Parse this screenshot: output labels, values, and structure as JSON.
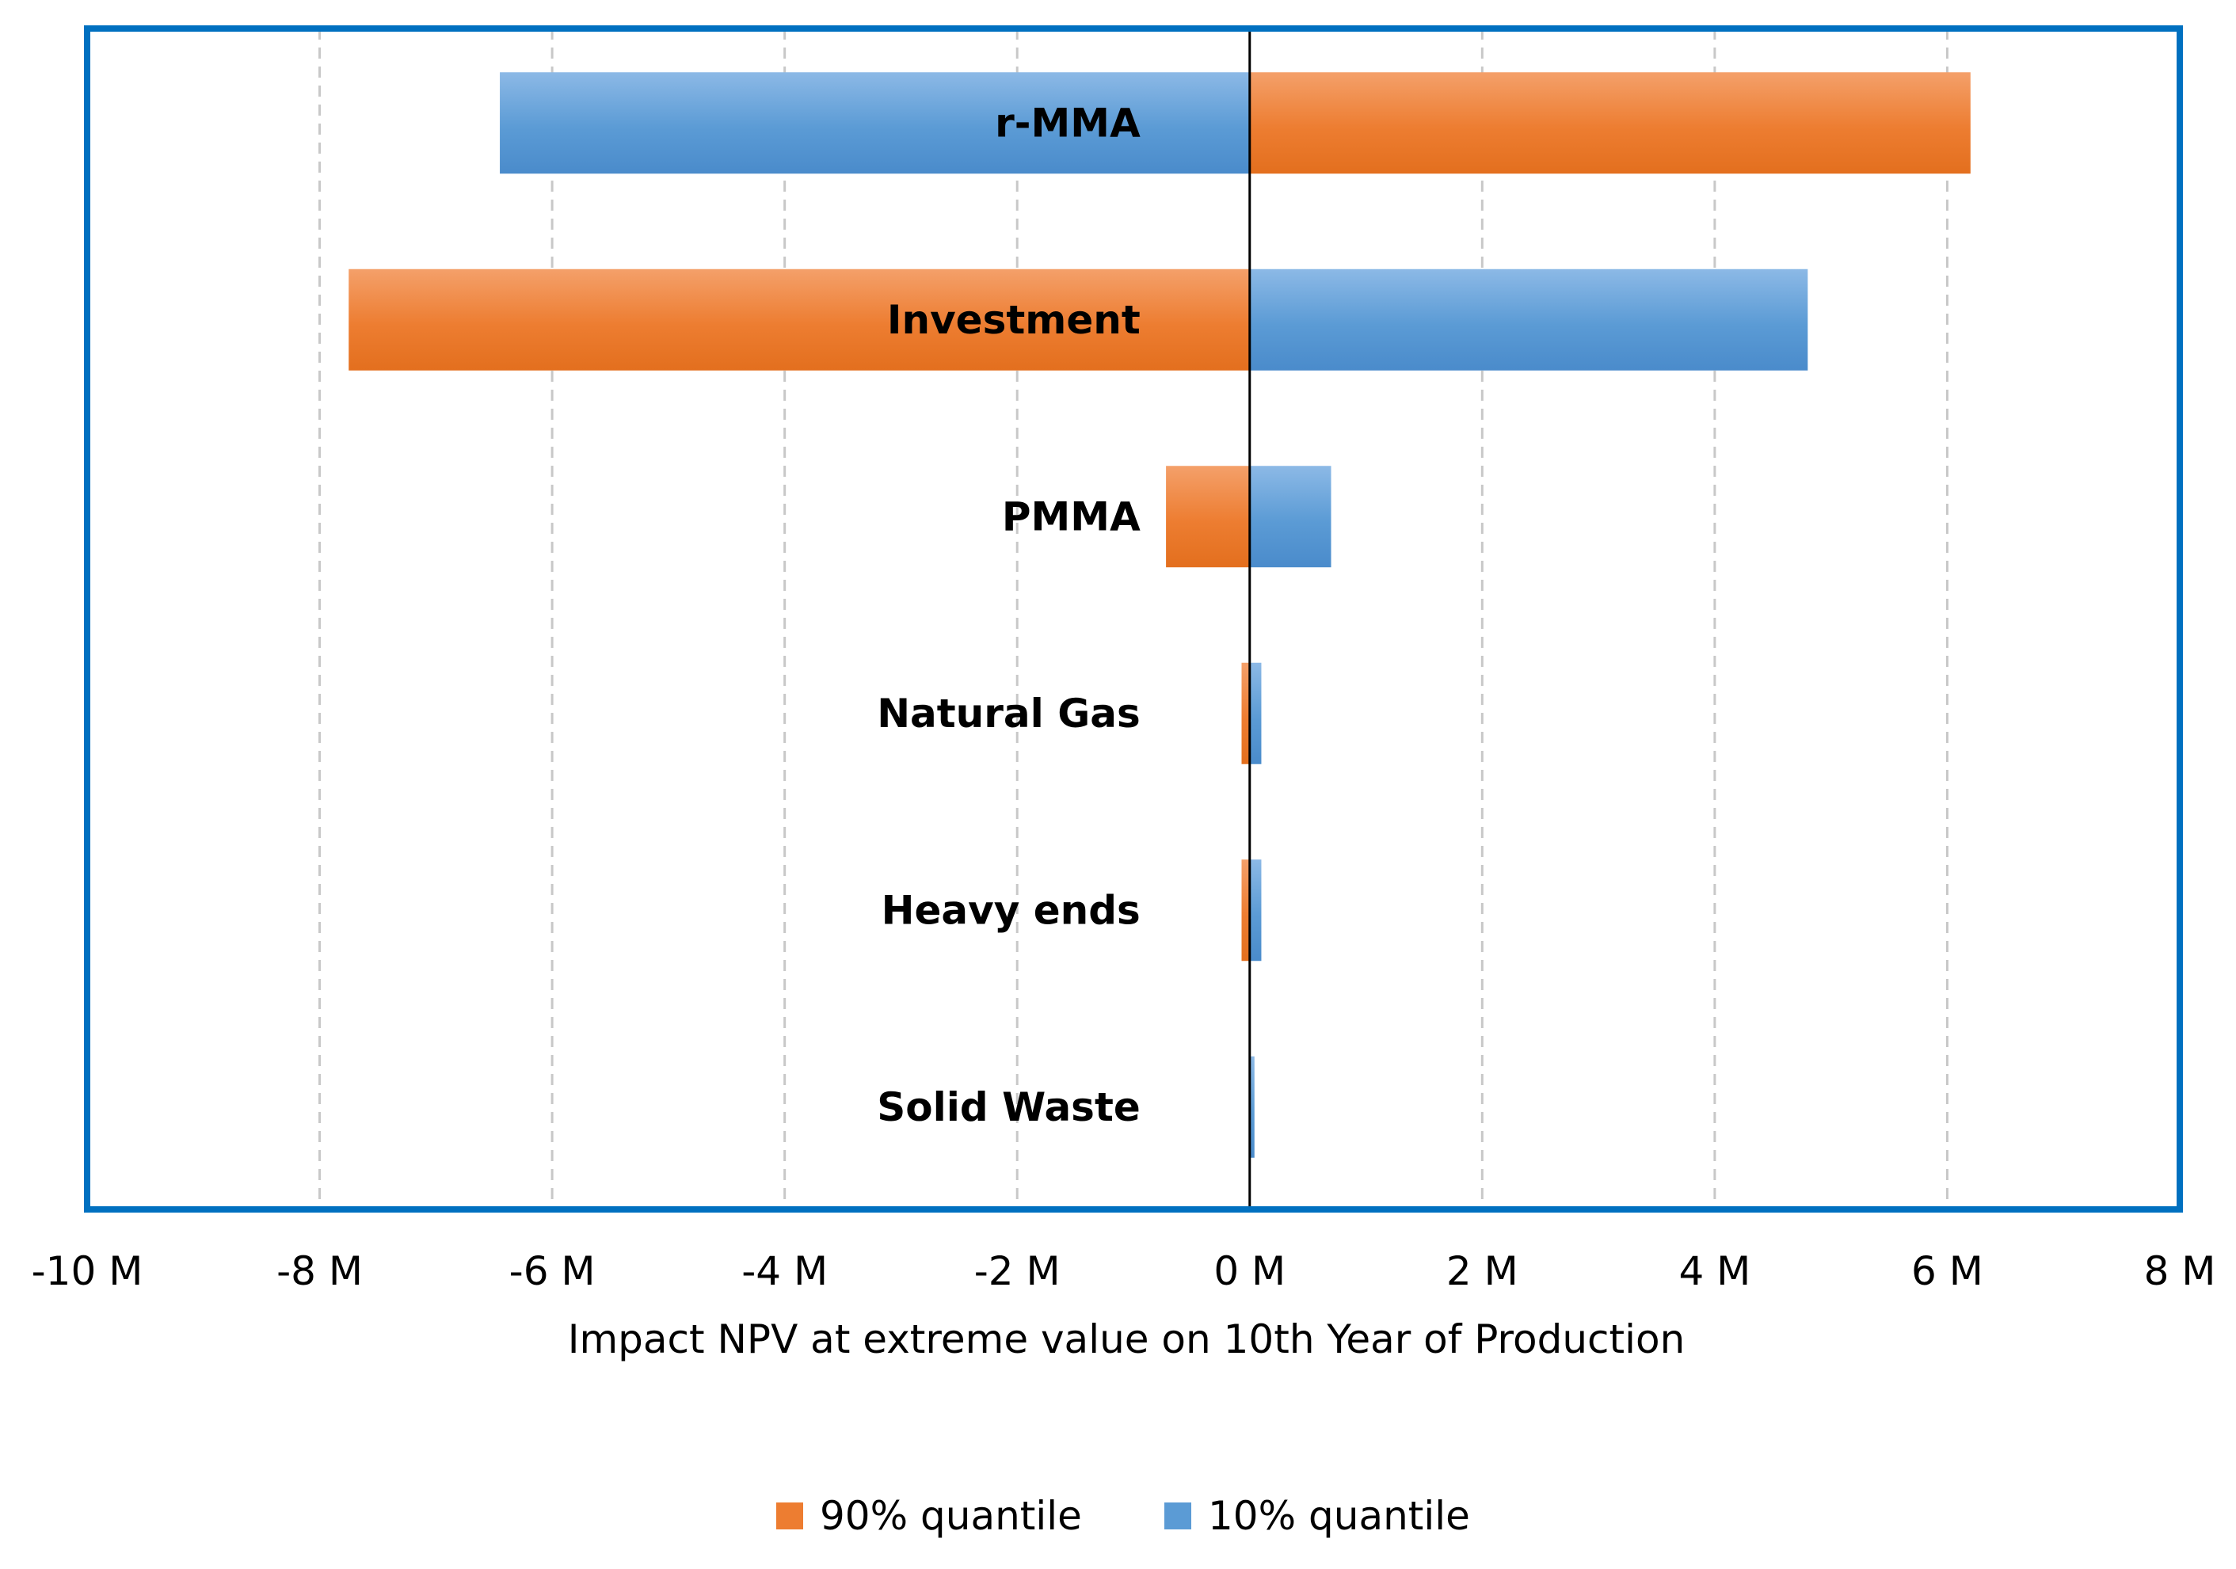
{
  "chart_data": {
    "type": "bar",
    "orientation": "horizontal",
    "subtype": "tornado",
    "title": "",
    "xlabel": "Impact NPV at extreme value on 10th Year of Production",
    "ylabel": "",
    "xlim": [
      -10,
      8
    ],
    "x_unit": "M",
    "x_ticks": [
      -10,
      -8,
      -6,
      -4,
      -2,
      0,
      2,
      4,
      6,
      8
    ],
    "x_tick_labels": [
      "-10 M",
      "-8 M",
      "-6 M",
      "-4 M",
      "-2 M",
      "0 M",
      "2 M",
      "4 M",
      "6 M",
      "8 M"
    ],
    "grid": "vertical dashed",
    "categories": [
      "r-MMA",
      "Investment",
      "PMMA",
      "Natural Gas",
      "Heavy ends",
      "Solid Waste"
    ],
    "series": [
      {
        "name": "90% quantile",
        "color": "#ED7D31",
        "values": [
          6.2,
          -7.75,
          -0.72,
          -0.07,
          -0.07,
          0.0
        ]
      },
      {
        "name": "10% quantile",
        "color": "#5B9BD5",
        "values": [
          -6.45,
          4.8,
          0.7,
          0.1,
          0.1,
          0.04
        ]
      }
    ],
    "legend": {
      "position": "bottom-center",
      "entries": [
        "90% quantile",
        "10% quantile"
      ]
    },
    "frame_color": "#0070C0"
  }
}
